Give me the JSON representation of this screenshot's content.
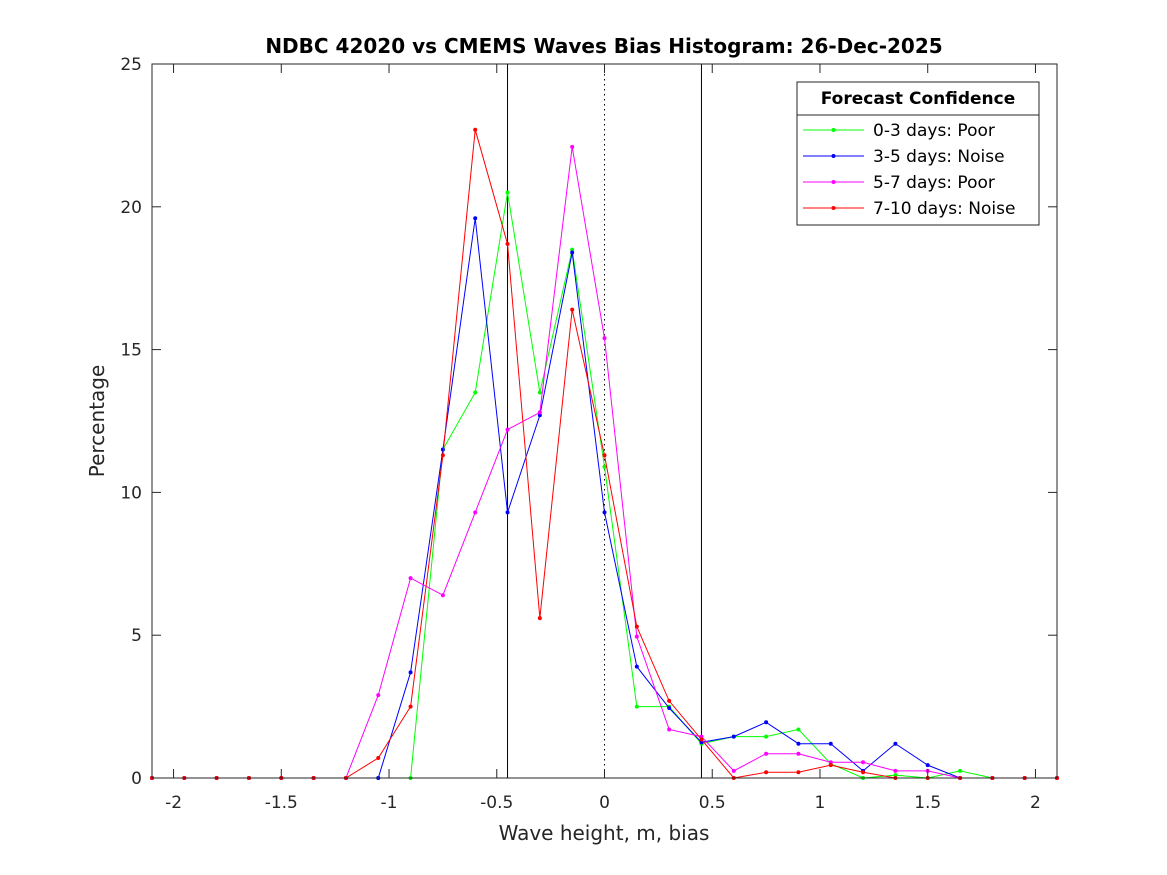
{
  "chart_data": {
    "type": "line",
    "title": "NDBC 42020 vs CMEMS Waves Bias Histogram: 26-Dec-2025",
    "xlabel": "Wave height, m, bias",
    "ylabel": "Percentage",
    "xlim": [
      -2.1,
      2.1
    ],
    "ylim": [
      0,
      25
    ],
    "xticks": [
      -2,
      -1.5,
      -1,
      -0.5,
      0,
      0.5,
      1,
      1.5,
      2
    ],
    "xtick_labels": [
      "-2",
      "-1.5",
      "-1",
      "-0.5",
      "0",
      "0.5",
      "1",
      "1.5",
      "2"
    ],
    "yticks": [
      0,
      5,
      10,
      15,
      20,
      25
    ],
    "ytick_labels": [
      "0",
      "5",
      "10",
      "15",
      "20",
      "25"
    ],
    "vertical_lines": [
      {
        "x": -0.45,
        "style": "solid",
        "color": "#000000"
      },
      {
        "x": 0,
        "style": "dotted",
        "color": "#000000"
      },
      {
        "x": 0.45,
        "style": "solid",
        "color": "#000000"
      }
    ],
    "legend": {
      "title": "Forecast Confidence",
      "location": "top-right"
    },
    "x": [
      -2.1,
      -1.95,
      -1.8,
      -1.65,
      -1.5,
      -1.35,
      -1.2,
      -1.05,
      -0.9,
      -0.75,
      -0.6,
      -0.45,
      -0.3,
      -0.15,
      0,
      0.15,
      0.3,
      0.45,
      0.6,
      0.75,
      0.9,
      1.05,
      1.2,
      1.35,
      1.5,
      1.65,
      1.8,
      1.95,
      2.1
    ],
    "series": [
      {
        "name": "0-3 days: Poor",
        "color": "#00ff00",
        "values": [
          0,
          0,
          0,
          0,
          0,
          0,
          0,
          0,
          0,
          11.5,
          13.5,
          20.5,
          13.5,
          18.5,
          10.9,
          2.5,
          2.5,
          1.2,
          1.45,
          1.45,
          1.7,
          0.5,
          0,
          0.1,
          0,
          0.25,
          0,
          0,
          0
        ]
      },
      {
        "name": "3-5 days: Noise",
        "color": "#0000ff",
        "values": [
          0,
          0,
          0,
          0,
          0,
          0,
          0,
          0,
          3.7,
          11.5,
          19.6,
          9.3,
          12.7,
          18.4,
          9.3,
          3.9,
          2.45,
          1.25,
          1.45,
          1.95,
          1.2,
          1.2,
          0.25,
          1.2,
          0.45,
          0,
          0,
          0,
          0
        ]
      },
      {
        "name": "5-7 days: Poor",
        "color": "#ff00ff",
        "values": [
          0,
          0,
          0,
          0,
          0,
          0,
          0,
          2.9,
          7.0,
          6.4,
          9.3,
          12.2,
          12.8,
          22.1,
          15.4,
          4.95,
          1.7,
          1.45,
          0.25,
          0.85,
          0.85,
          0.55,
          0.55,
          0.25,
          0.25,
          0,
          0,
          0,
          0
        ]
      },
      {
        "name": "7-10 days: Noise",
        "color": "#ff0000",
        "values": [
          0,
          0,
          0,
          0,
          0,
          0,
          0,
          0.7,
          2.5,
          11.3,
          22.7,
          18.7,
          5.6,
          16.4,
          11.3,
          5.3,
          2.7,
          1.35,
          0,
          0.2,
          0.2,
          0.45,
          0.2,
          0,
          0,
          0,
          0,
          0,
          0
        ]
      }
    ]
  }
}
